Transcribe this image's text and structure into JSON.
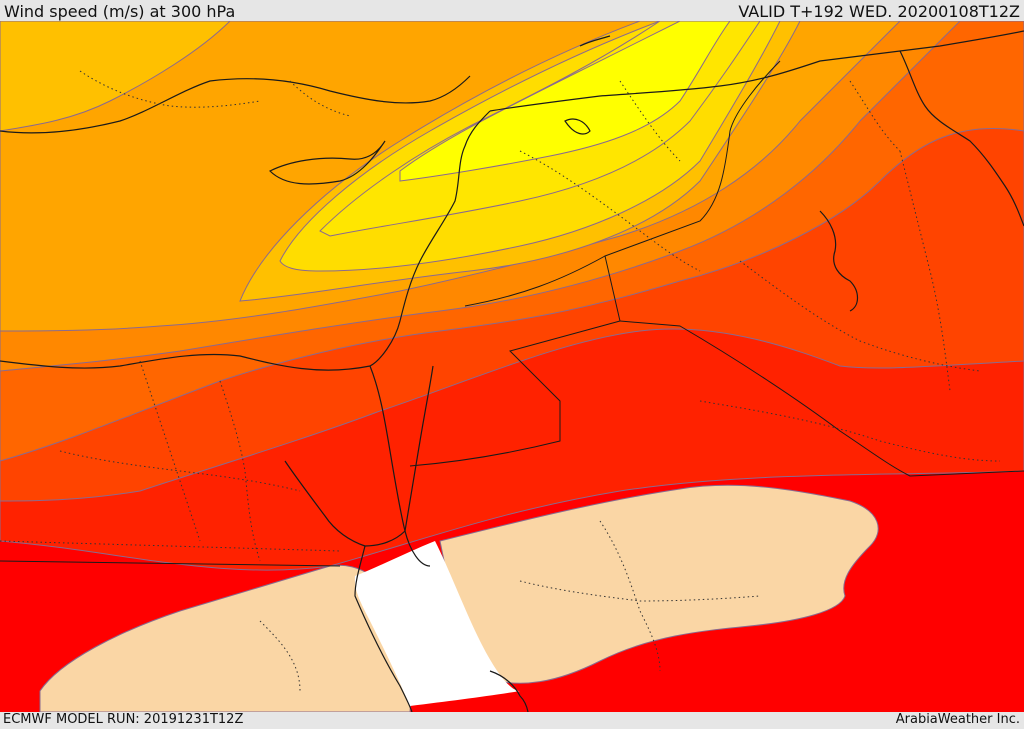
{
  "header": {
    "title": "Wind speed (m/s) at 300 hPa",
    "valid": "VALID T+192 WED. 20200108T12Z"
  },
  "footer": {
    "model_run": "ECMWF MODEL RUN: 20191231T12Z",
    "brand": "ArabiaWeather Inc."
  },
  "map": {
    "variable": "wind speed",
    "units": "m/s",
    "level": "300 hPa",
    "colors": {
      "band_1": "#fad6a5",
      "band_2": "#ff0000",
      "band_3": "#ff2200",
      "band_4": "#ff4400",
      "band_5": "#ff6600",
      "band_6": "#ff8800",
      "band_7": "#ffa500",
      "band_8": "#ffc000",
      "band_9": "#ffdd00",
      "band_10": "#ffff00",
      "no_data": "#ffffff",
      "contour": "#8a6a8f",
      "border": "#1a1a1a"
    }
  }
}
